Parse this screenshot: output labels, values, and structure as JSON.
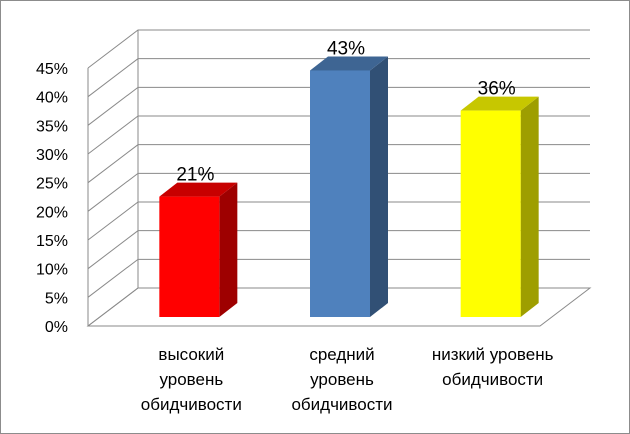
{
  "chart_data": {
    "type": "bar",
    "style": "3d-column",
    "categories": [
      [
        "высокий",
        "уровень",
        "обидчивости"
      ],
      [
        "средний",
        "уровень",
        "обидчивости"
      ],
      [
        "низкий уровень",
        "обидчивости"
      ]
    ],
    "values": [
      21,
      43,
      36
    ],
    "data_labels": [
      "21%",
      "43%",
      "36%"
    ],
    "colors": [
      "#ff0000",
      "#4f81bd",
      "#ffff00"
    ],
    "yticks": [
      "0%",
      "5%",
      "10%",
      "15%",
      "20%",
      "25%",
      "30%",
      "35%",
      "40%",
      "45%"
    ],
    "ylim": [
      0,
      45
    ],
    "grid": true,
    "legend": "none",
    "title": "",
    "xlabel": "",
    "ylabel": ""
  }
}
